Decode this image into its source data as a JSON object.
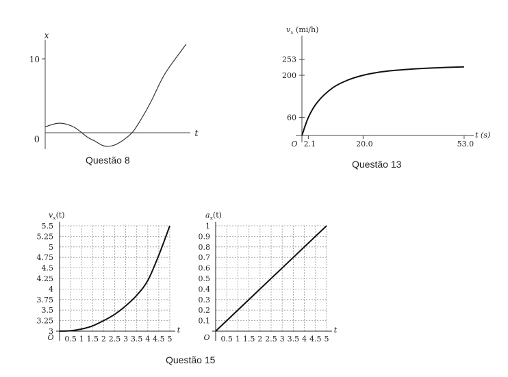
{
  "captions": {
    "q8": "Questão 8",
    "q13": "Questão 13",
    "q15": "Questão 15"
  },
  "chart_data": [
    {
      "id": "q8",
      "type": "line",
      "ylabel": "x",
      "xlabel": "t",
      "y_tick_labels": [
        "10",
        "0"
      ],
      "series": [
        {
          "x": [
            0,
            0.1,
            0.2,
            0.3,
            0.35,
            0.42,
            0.5,
            0.6,
            0.66,
            0.75,
            0.85,
            1.0
          ],
          "y": [
            0.8,
            1.3,
            0.8,
            -0.6,
            -1.1,
            -1.8,
            -1.6,
            -0.3,
            1.2,
            4.2,
            8.0,
            12.0
          ]
        }
      ]
    },
    {
      "id": "q13",
      "type": "line",
      "ylabel": "vx (mi/h)",
      "xlabel": "t (s)",
      "origin_label": "O",
      "y_tick_labels": [
        "253",
        "200",
        "60"
      ],
      "x_tick_labels": [
        "2.1",
        "20.0",
        "53.0"
      ],
      "series": [
        {
          "x": [
            0,
            2.1,
            5,
            10,
            15,
            20,
            25,
            30,
            35,
            40,
            45,
            50,
            53
          ],
          "y": [
            0,
            60,
            110,
            158,
            184,
            200,
            210,
            216,
            220,
            223,
            225,
            227,
            228
          ]
        }
      ]
    },
    {
      "id": "q15a",
      "type": "line",
      "ylabel": "vx(t)",
      "xlabel": "t",
      "origin_label": "O",
      "grid": true,
      "xlim": [
        0,
        5
      ],
      "ylim": [
        3,
        5.5
      ],
      "x_tick_labels": [
        "0.5",
        "1",
        "1.5",
        "2",
        "2.5",
        "3",
        "3.5",
        "4",
        "4.5",
        "5"
      ],
      "y_tick_labels": [
        "3",
        "3.25",
        "3.5",
        "3.75",
        "4",
        "4.25",
        "4.5",
        "4.75",
        "5",
        "5.25",
        "5.5"
      ],
      "series": [
        {
          "x": [
            0,
            0.5,
            1,
            1.5,
            2,
            2.5,
            3,
            3.5,
            4,
            4.5,
            5
          ],
          "y": [
            3,
            3.01,
            3.05,
            3.125,
            3.25,
            3.4,
            3.6,
            3.85,
            4.2,
            4.8,
            5.5
          ]
        }
      ]
    },
    {
      "id": "q15b",
      "type": "line",
      "ylabel": "ax(t)",
      "xlabel": "t",
      "origin_label": "O",
      "grid": true,
      "xlim": [
        0,
        5
      ],
      "ylim": [
        0,
        1
      ],
      "x_tick_labels": [
        "0.5",
        "1",
        "1.5",
        "2",
        "2.5",
        "3",
        "3.5",
        "4",
        "4.5",
        "5"
      ],
      "y_tick_labels": [
        "0.1",
        "0.2",
        "0.3",
        "0.4",
        "0.5",
        "0.6",
        "0.7",
        "0.8",
        "0.9",
        "1"
      ],
      "series": [
        {
          "x": [
            0,
            5
          ],
          "y": [
            0,
            1
          ]
        }
      ]
    }
  ]
}
